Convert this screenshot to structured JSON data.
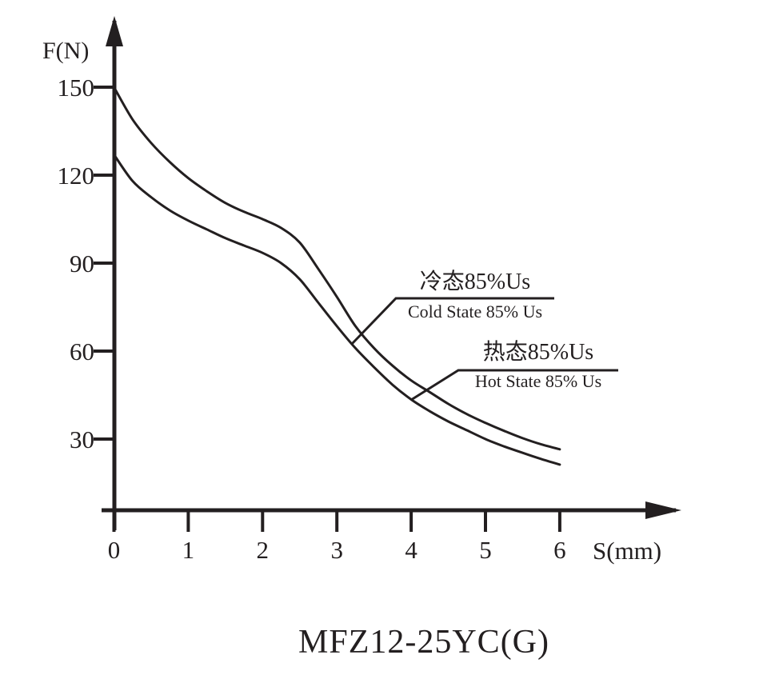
{
  "chart_data": {
    "type": "line",
    "title": "MFZ12-25YC(G)",
    "xlabel": "S(mm)",
    "ylabel": "F(N)",
    "x_ticks": [
      0,
      1,
      2,
      3,
      4,
      5,
      6
    ],
    "y_ticks": [
      30,
      60,
      90,
      120,
      150
    ],
    "xlim": [
      0,
      6.6
    ],
    "ylim": [
      0,
      165
    ],
    "grid": false,
    "legend_position": "leader-line annotations inside plot",
    "x": [
      0,
      0.25,
      0.5,
      0.75,
      1,
      1.25,
      1.5,
      1.75,
      2,
      2.25,
      2.5,
      2.75,
      3,
      3.25,
      3.5,
      3.75,
      4,
      4.25,
      4.5,
      4.75,
      5,
      5.25,
      5.5,
      5.75,
      6
    ],
    "series": [
      {
        "name": "Cold State 85% Us",
        "name_zh": "冷态85%Us",
        "values": [
          150,
          139,
          131,
          124.5,
          119,
          114.5,
          110.5,
          107.5,
          105,
          102,
          97,
          88,
          78.5,
          68.5,
          61,
          55,
          50,
          46,
          42,
          38.5,
          35.5,
          32.8,
          30.3,
          28.2,
          26.5
        ]
      },
      {
        "name": "Hot State 85% Us",
        "name_zh": "热态85%Us",
        "values": [
          127,
          118,
          112.5,
          108,
          104.5,
          101.5,
          98.5,
          96,
          93.5,
          90,
          84.5,
          76.5,
          68.5,
          61,
          54.5,
          48.5,
          43.5,
          39.5,
          36,
          33,
          30,
          27.5,
          25.3,
          23.2,
          21.3
        ]
      }
    ]
  },
  "labels": {
    "title": "MFZ12-25YC(G)",
    "y_axis": "F(N)",
    "x_axis": "S(mm)"
  },
  "annotations": {
    "cold_zh": "冷态85%Us",
    "cold_en": "Cold State 85% Us",
    "hot_zh": "热态85%Us",
    "hot_en": "Hot State 85% Us"
  },
  "colors": {
    "line": "#231f20",
    "background": "#ffffff"
  }
}
